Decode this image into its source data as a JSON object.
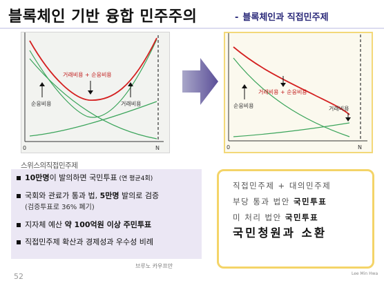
{
  "header": {
    "title": "블록체인 기반 융합 민주주의",
    "subtitle_dash": "-",
    "subtitle": "블록체인과 직접민주제"
  },
  "left_diagram": {
    "total_cost_label": "거래비용 + 순응비용",
    "compliance_label": "순응비용",
    "transaction_label": "거래비용",
    "axis_origin": "0",
    "axis_n": "N",
    "colors": {
      "total": "#d42020",
      "component": "#3aa45a"
    }
  },
  "right_diagram": {
    "total_cost_label": "거래비용 + 순응비용",
    "compliance_label": "순응비용",
    "transaction_label": "거래비용",
    "axis_origin": "0",
    "axis_n": "N"
  },
  "swiss": {
    "title": "스위스의직접민주제",
    "items": [
      {
        "bold": "10만명",
        "text": "이 발의하면 국민투표",
        "small": " (연 평균4회)"
      },
      {
        "pre": "국회와 관료가 통과 법, ",
        "bold": "5만명",
        "text": " 발의로 검증"
      },
      {
        "sub": "(검증투표로 36% 폐기)"
      },
      {
        "pre": "지자체 예산 ",
        "bold": "약 100억원 이상 주민투표"
      },
      {
        "pre": "직접민주제 확산과 경제성과 우수성 비례"
      }
    ],
    "source": "브루노 카우프만"
  },
  "callout": {
    "line1": "직접민주제 + 대의민주제",
    "line2_pre": "부당 통과 법안 ",
    "line2_bold": "국민투표",
    "line3_pre": "미 처리 법안 ",
    "line3_bold": "국민투표",
    "line4": "국민청원과 소환"
  },
  "footer": {
    "page": "52",
    "author": "Lee Min Hwa"
  }
}
